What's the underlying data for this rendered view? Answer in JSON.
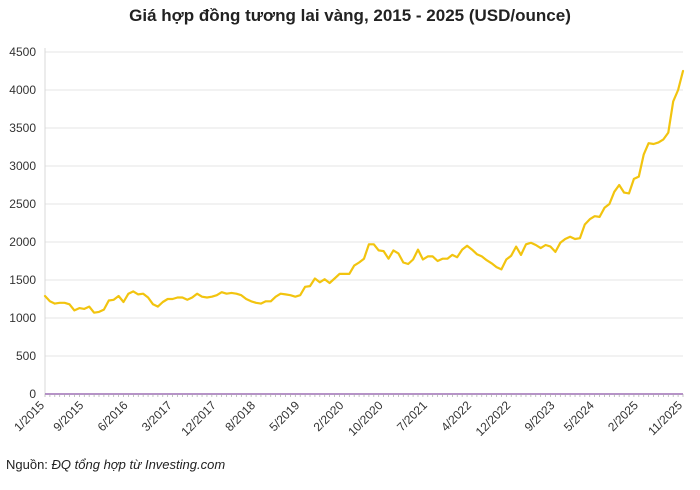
{
  "title": "Giá hợp đồng tương lai vàng, 2015 - 2025 (USD/ounce)",
  "source": {
    "label": "Nguồn: ",
    "text": "ĐQ tổng hợp từ Investing.com"
  },
  "chart_data": {
    "type": "line",
    "title": "Giá hợp đồng tương lai vàng, 2015 - 2025 (USD/ounce)",
    "xlabel": "",
    "ylabel": "",
    "ylim": [
      0,
      4500
    ],
    "yticks": [
      0,
      500,
      1000,
      1500,
      2000,
      2500,
      3000,
      3500,
      4000,
      4500
    ],
    "xlim": [
      "2015-01",
      "2025-11"
    ],
    "xticks": [
      "1/2015",
      "9/2015",
      "6/2016",
      "3/2017",
      "12/2017",
      "8/2018",
      "5/2019",
      "2/2020",
      "10/2020",
      "7/2021",
      "4/2022",
      "12/2022",
      "9/2023",
      "5/2024",
      "2/2025",
      "11/2025"
    ],
    "grid": true,
    "color": "#f2c40f",
    "series": [
      {
        "x": [
          "2015-01",
          "2015-02",
          "2015-03",
          "2015-04",
          "2015-05",
          "2015-06",
          "2015-07",
          "2015-08",
          "2015-09",
          "2015-10",
          "2015-11",
          "2015-12",
          "2016-01",
          "2016-02",
          "2016-03",
          "2016-04",
          "2016-05",
          "2016-06",
          "2016-07",
          "2016-08",
          "2016-09",
          "2016-10",
          "2016-11",
          "2016-12",
          "2017-01",
          "2017-02",
          "2017-03",
          "2017-04",
          "2017-05",
          "2017-06",
          "2017-07",
          "2017-08",
          "2017-09",
          "2017-10",
          "2017-11",
          "2017-12",
          "2018-01",
          "2018-02",
          "2018-03",
          "2018-04",
          "2018-05",
          "2018-06",
          "2018-07",
          "2018-08",
          "2018-09",
          "2018-10",
          "2018-11",
          "2018-12",
          "2019-01",
          "2019-02",
          "2019-03",
          "2019-04",
          "2019-05",
          "2019-06",
          "2019-07",
          "2019-08",
          "2019-09",
          "2019-10",
          "2019-11",
          "2019-12",
          "2020-01",
          "2020-02",
          "2020-03",
          "2020-04",
          "2020-05",
          "2020-06",
          "2020-07",
          "2020-08",
          "2020-09",
          "2020-10",
          "2020-11",
          "2020-12",
          "2021-01",
          "2021-02",
          "2021-03",
          "2021-04",
          "2021-05",
          "2021-06",
          "2021-07",
          "2021-08",
          "2021-09",
          "2021-10",
          "2021-11",
          "2021-12",
          "2022-01",
          "2022-02",
          "2022-03",
          "2022-04",
          "2022-05",
          "2022-06",
          "2022-07",
          "2022-08",
          "2022-09",
          "2022-10",
          "2022-11",
          "2022-12",
          "2023-01",
          "2023-02",
          "2023-03",
          "2023-04",
          "2023-05",
          "2023-06",
          "2023-07",
          "2023-08",
          "2023-09",
          "2023-10",
          "2023-11",
          "2023-12",
          "2024-01",
          "2024-02",
          "2024-03",
          "2024-04",
          "2024-05",
          "2024-06",
          "2024-07",
          "2024-08",
          "2024-09",
          "2024-10",
          "2024-11",
          "2024-12",
          "2025-01",
          "2025-02",
          "2025-03",
          "2025-04",
          "2025-05",
          "2025-06",
          "2025-07",
          "2025-08",
          "2025-09",
          "2025-10",
          "2025-11"
        ],
        "values": [
          1290,
          1220,
          1190,
          1200,
          1200,
          1180,
          1100,
          1130,
          1120,
          1150,
          1070,
          1080,
          1110,
          1230,
          1240,
          1290,
          1210,
          1320,
          1350,
          1310,
          1320,
          1270,
          1180,
          1150,
          1210,
          1250,
          1250,
          1270,
          1270,
          1240,
          1270,
          1320,
          1280,
          1270,
          1280,
          1300,
          1340,
          1320,
          1330,
          1320,
          1300,
          1250,
          1220,
          1200,
          1190,
          1220,
          1220,
          1280,
          1320,
          1310,
          1300,
          1280,
          1300,
          1410,
          1420,
          1520,
          1470,
          1510,
          1460,
          1520,
          1580,
          1580,
          1580,
          1690,
          1730,
          1780,
          1970,
          1970,
          1890,
          1880,
          1780,
          1890,
          1850,
          1730,
          1710,
          1770,
          1900,
          1770,
          1810,
          1810,
          1750,
          1780,
          1780,
          1830,
          1800,
          1900,
          1950,
          1900,
          1840,
          1810,
          1760,
          1720,
          1670,
          1640,
          1770,
          1820,
          1940,
          1830,
          1970,
          1990,
          1960,
          1920,
          1960,
          1940,
          1870,
          1990,
          2040,
          2070,
          2040,
          2050,
          2230,
          2300,
          2340,
          2330,
          2450,
          2500,
          2660,
          2750,
          2650,
          2640,
          2830,
          2860,
          3150,
          3300,
          3290,
          3310,
          3350,
          3440,
          3850,
          4000,
          4250
        ]
      }
    ]
  }
}
